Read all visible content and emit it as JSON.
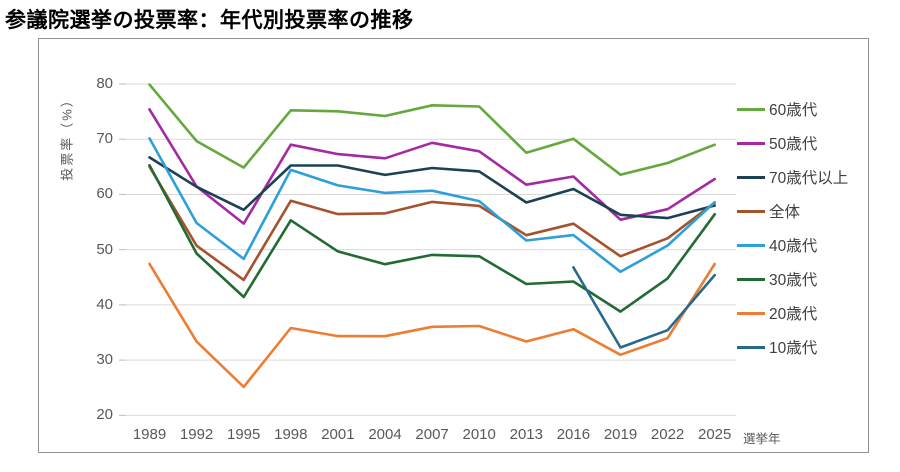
{
  "page": {
    "title": "参議院選挙の投票率：年代別投票率の推移"
  },
  "chart_data": {
    "type": "line",
    "title": "参議院選挙の投票率：年代別投票率の推移",
    "xlabel": "選挙年",
    "ylabel": "投票率（%）",
    "ylim": [
      20,
      80
    ],
    "yticks": [
      80,
      70,
      60,
      50,
      40,
      30,
      20
    ],
    "grid": "horizontal-only",
    "legend_position": "right-inside",
    "categories": [
      "1989",
      "1992",
      "1995",
      "1998",
      "2001",
      "2004",
      "2007",
      "2010",
      "2013",
      "2016",
      "2019",
      "2022",
      "2025"
    ],
    "series": [
      {
        "name": "60歳代",
        "color": "#64a83e",
        "values": [
          79.89,
          69.66,
          64.86,
          75.24,
          75.05,
          74.21,
          76.15,
          75.93,
          67.56,
          70.07,
          63.58,
          65.69,
          69.0
        ]
      },
      {
        "name": "50歳代",
        "color": "#a32aa0",
        "values": [
          75.4,
          61.43,
          54.72,
          69.0,
          67.3,
          66.54,
          69.35,
          67.81,
          61.77,
          63.25,
          55.43,
          57.33,
          62.8
        ]
      },
      {
        "name": "70歳代以上",
        "color": "#1d4154",
        "values": [
          66.71,
          61.39,
          57.21,
          65.24,
          65.24,
          63.53,
          64.79,
          64.17,
          58.54,
          60.98,
          56.31,
          55.72,
          58.0
        ]
      },
      {
        "name": "全体",
        "color": "#a5522d",
        "values": [
          65.02,
          50.72,
          44.52,
          58.84,
          56.44,
          56.57,
          58.64,
          57.92,
          52.61,
          54.7,
          48.8,
          52.05,
          58.51
        ]
      },
      {
        "name": "40歳代",
        "color": "#2e9fd9",
        "values": [
          70.15,
          54.83,
          48.32,
          64.44,
          61.63,
          60.28,
          60.68,
          58.8,
          51.66,
          52.64,
          45.99,
          50.76,
          58.6
        ]
      },
      {
        "name": "30歳代",
        "color": "#226b33",
        "values": [
          65.29,
          49.3,
          41.43,
          55.31,
          49.68,
          47.36,
          49.05,
          48.79,
          43.78,
          44.24,
          38.78,
          44.8,
          56.4
        ]
      },
      {
        "name": "20歳代",
        "color": "#ec7d33",
        "values": [
          47.42,
          33.35,
          25.15,
          35.81,
          34.35,
          34.33,
          36.03,
          36.17,
          33.37,
          35.6,
          30.96,
          33.99,
          47.4
        ]
      },
      {
        "name": "10歳代",
        "color": "#266a8c",
        "values": [
          null,
          null,
          null,
          null,
          null,
          null,
          null,
          null,
          null,
          46.78,
          32.28,
          35.42,
          45.4
        ]
      }
    ]
  },
  "colors": {
    "grid": "#d9d9d9",
    "tick": "#bdbdbd",
    "axis_text": "#595959",
    "legend_text": "#404040",
    "frame_border": "#919191",
    "title_text": "#000000"
  }
}
